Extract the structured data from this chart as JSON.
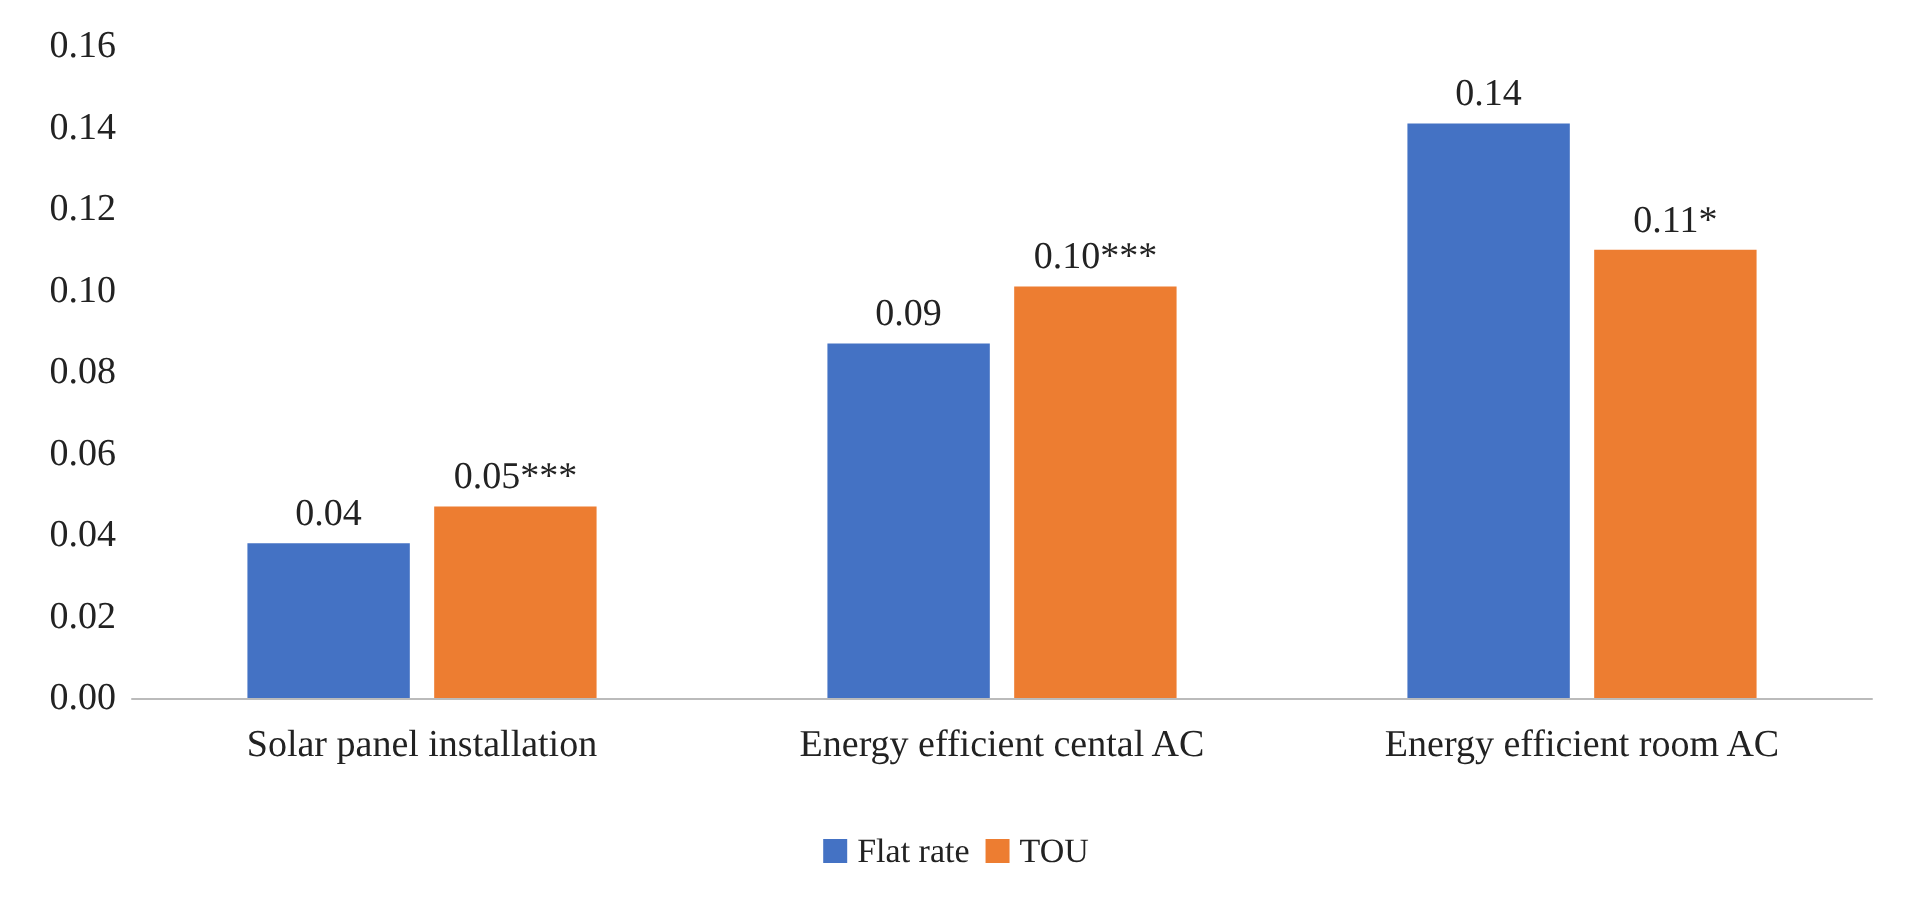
{
  "chart_data": {
    "type": "bar",
    "categories": [
      "Solar panel installation",
      "Energy efficient cental AC",
      "Energy efficient room AC"
    ],
    "series": [
      {
        "name": "Flat rate",
        "color": "#4472c4",
        "values": [
          0.038,
          0.087,
          0.141
        ],
        "value_labels": [
          "0.04",
          "0.09",
          "0.14"
        ]
      },
      {
        "name": "TOU",
        "color": "#ed7d31",
        "values": [
          0.047,
          0.101,
          0.11
        ],
        "value_labels": [
          "0.05***",
          "0.10***",
          "0.11*"
        ]
      }
    ],
    "ylim": [
      0,
      0.16
    ],
    "yticks": [
      {
        "value": 0,
        "label": "0.00"
      },
      {
        "value": 0.02,
        "label": "0.02"
      },
      {
        "value": 0.04,
        "label": "0.04"
      },
      {
        "value": 0.06,
        "label": "0.06"
      },
      {
        "value": 0.08,
        "label": "0.08"
      },
      {
        "value": 0.1,
        "label": "0.10"
      },
      {
        "value": 0.12,
        "label": "0.12"
      },
      {
        "value": 0.14,
        "label": "0.14"
      },
      {
        "value": 0.16,
        "label": "0.16"
      }
    ],
    "grid": false,
    "legend": "bottom"
  }
}
